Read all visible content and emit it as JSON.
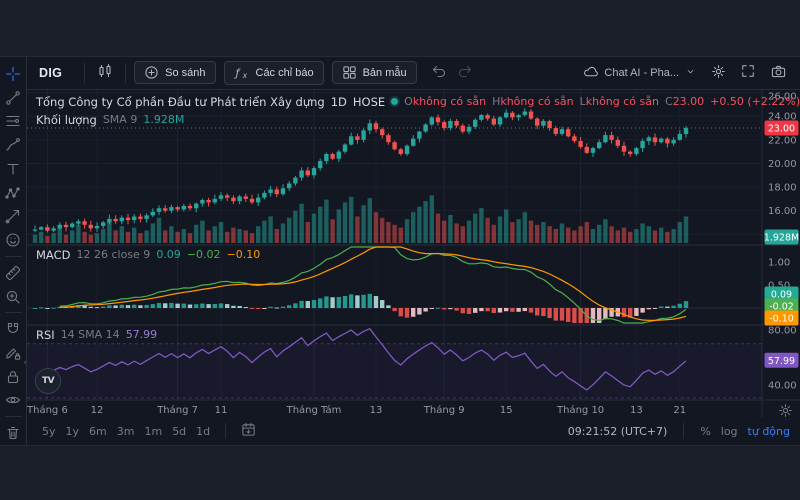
{
  "toolbar": {
    "symbol": "DIG",
    "compare_label": "So sánh",
    "indicators_label": "Các chỉ báo",
    "templates_label": "Bản mẫu",
    "chat_label": "Chat AI - Pha..."
  },
  "header": {
    "company": "Tổng Công ty Cổ phần Đầu tư Phát triển Xây dựng",
    "interval": "1D",
    "exchange": "HOSE",
    "o_label": "O",
    "h_label": "H",
    "l_label": "L",
    "c_label": "C",
    "na_text": "không có sẵn",
    "close_text": "23.00",
    "change_text": "+0.50 (+2.22%)"
  },
  "volume_row": {
    "label": "Khối lượng",
    "params": "SMA 9",
    "value": "1.928M"
  },
  "macd_row": {
    "label": "MACD",
    "params": "12 26 close 9",
    "hist_text": "0.09",
    "macd_text": "−0.02",
    "signal_text": "−0.10"
  },
  "rsi_row": {
    "label": "RSI",
    "params": "14 SMA 14",
    "value": "57.99"
  },
  "price_axis": {
    "last_price_badge": "23.00",
    "volume_badge": "1.928M",
    "macd_badges": [
      {
        "text": "0.09",
        "color": "#22ab94"
      },
      {
        "text": "-0.02",
        "color": "#4caf50"
      },
      {
        "text": "-0.10",
        "color": "#ff9800"
      }
    ],
    "rsi_badge": {
      "text": "57.99",
      "color": "#7e57c2"
    }
  },
  "bottom_bar": {
    "ranges": [
      "5y",
      "1y",
      "6m",
      "3m",
      "1m",
      "5d",
      "1d"
    ],
    "clock": "09:21:52 (UTC+7)",
    "percent_label": "%",
    "log_label": "log",
    "auto_label": "tự động"
  },
  "sidebar": {
    "tools": [
      {
        "name": "crosshair",
        "active": true
      },
      {
        "name": "trend-line"
      },
      {
        "name": "fib-retracement"
      },
      {
        "name": "brush"
      },
      {
        "name": "text"
      },
      {
        "name": "pattern"
      },
      {
        "name": "forecast"
      },
      {
        "name": "emoji"
      },
      {
        "divider": true
      },
      {
        "name": "ruler"
      },
      {
        "name": "zoom-in"
      },
      {
        "divider": true
      },
      {
        "name": "magnet"
      },
      {
        "name": "draw-lock"
      },
      {
        "name": "lock"
      },
      {
        "name": "eye"
      },
      {
        "divider": true
      },
      {
        "name": "trash"
      }
    ]
  },
  "chart_data": {
    "type": "candlestick",
    "symbol": "DIG",
    "interval": "1D",
    "price_ticks": [
      26,
      24,
      22,
      20,
      18,
      16,
      14
    ],
    "last_close": 23.0,
    "closes": [
      14.4,
      14.6,
      14.3,
      14.5,
      14.8,
      14.6,
      14.9,
      15.1,
      14.8,
      14.5,
      14.7,
      15.0,
      15.3,
      15.1,
      15.4,
      15.2,
      15.5,
      15.3,
      15.6,
      15.9,
      16.2,
      16.0,
      16.3,
      16.1,
      16.4,
      16.2,
      16.6,
      16.9,
      16.7,
      17.0,
      17.3,
      17.1,
      16.8,
      17.2,
      17.0,
      16.7,
      17.1,
      17.5,
      17.8,
      17.4,
      17.9,
      18.3,
      18.8,
      19.4,
      19.0,
      19.6,
      20.2,
      20.8,
      20.4,
      21.0,
      21.6,
      22.3,
      22.0,
      22.8,
      23.4,
      22.9,
      22.4,
      21.8,
      21.2,
      20.8,
      21.5,
      22.1,
      22.7,
      23.3,
      23.9,
      23.5,
      23.0,
      23.6,
      23.2,
      22.7,
      23.1,
      23.7,
      24.1,
      23.8,
      23.3,
      23.9,
      24.3,
      23.9,
      24.1,
      24.4,
      23.8,
      23.2,
      23.6,
      23.0,
      22.5,
      22.9,
      22.3,
      21.9,
      21.4,
      20.9,
      21.3,
      21.8,
      22.4,
      22.0,
      21.5,
      21.0,
      20.8,
      21.3,
      21.9,
      22.2,
      21.8,
      22.1,
      21.7,
      22.0,
      22.5,
      23.0
    ],
    "volumes_m": [
      0.6,
      0.8,
      0.5,
      0.7,
      1.1,
      0.6,
      0.9,
      1.3,
      0.8,
      0.6,
      0.7,
      1.0,
      1.6,
      0.9,
      1.2,
      0.8,
      1.1,
      0.7,
      0.9,
      1.4,
      1.8,
      0.9,
      1.2,
      0.8,
      1.0,
      0.7,
      1.3,
      1.6,
      0.9,
      1.2,
      1.5,
      0.8,
      1.1,
      1.0,
      0.9,
      0.7,
      1.2,
      1.6,
      1.9,
      1.0,
      1.4,
      1.8,
      2.3,
      2.8,
      1.5,
      2.1,
      2.6,
      3.1,
      1.7,
      2.4,
      2.9,
      3.3,
      1.9,
      2.7,
      3.2,
      2.2,
      1.8,
      1.5,
      1.3,
      1.1,
      1.7,
      2.2,
      2.6,
      3.0,
      3.4,
      2.1,
      1.6,
      2.0,
      1.4,
      1.2,
      1.6,
      2.1,
      2.5,
      1.8,
      1.3,
      1.9,
      2.4,
      1.5,
      1.7,
      2.2,
      1.6,
      1.3,
      1.5,
      1.2,
      1.0,
      1.4,
      1.1,
      0.9,
      1.2,
      1.5,
      1.0,
      1.3,
      1.7,
      1.2,
      0.9,
      1.1,
      0.8,
      1.0,
      1.4,
      1.2,
      0.9,
      1.1,
      0.8,
      1.0,
      1.5,
      1.9
    ],
    "volume_sma9_m": 1.928,
    "indicators": {
      "macd": {
        "params": "12 26 close 9",
        "hist": 0.09,
        "macd": -0.02,
        "signal": -0.1,
        "ticks": [
          1.0,
          0.5
        ]
      },
      "rsi": {
        "params": "14 SMA 14",
        "value": 57.99,
        "ticks": [
          80,
          40
        ],
        "bands": [
          70,
          30
        ]
      }
    },
    "time_labels": [
      {
        "t": "Tháng 6",
        "i": 2,
        "month": true
      },
      {
        "t": "12",
        "i": 10
      },
      {
        "t": "Tháng 7",
        "i": 23,
        "month": true
      },
      {
        "t": "11",
        "i": 30
      },
      {
        "t": "Tháng Tám",
        "i": 45,
        "month": true
      },
      {
        "t": "13",
        "i": 55
      },
      {
        "t": "Tháng 9",
        "i": 66,
        "month": true
      },
      {
        "t": "15",
        "i": 76
      },
      {
        "t": "Tháng 10",
        "i": 88,
        "month": true
      },
      {
        "t": "13",
        "i": 97
      },
      {
        "t": "21",
        "i": 104
      }
    ],
    "colors": {
      "up": "#26a69a",
      "down": "#ef5350",
      "last_badge": "#f23645",
      "volume_badge": "#26a69a",
      "macd_line": "#4caf50",
      "signal_line": "#ff9800",
      "hist_up": "#26a69a",
      "hist_up_weak": "#b2dfdb",
      "hist_down": "#ef5350",
      "hist_down_weak": "#fccbcd",
      "rsi_line": "#7e57c2"
    }
  }
}
